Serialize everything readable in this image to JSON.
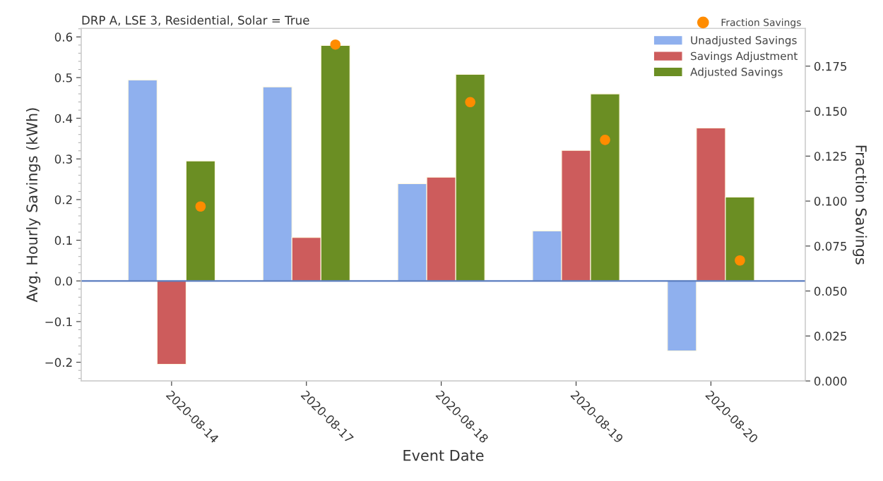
{
  "chart_data": {
    "type": "bar",
    "title": "DRP A, LSE 3, Residential, Solar = True",
    "xlabel": "Event Date",
    "ylabel": "Avg. Hourly Savings (kWh)",
    "y2label": "Fraction Savings",
    "categories": [
      "2020-08-14",
      "2020-08-17",
      "2020-08-18",
      "2020-08-19",
      "2020-08-20"
    ],
    "series": [
      {
        "name": "Unadjusted Savings",
        "color": "#8fb0ee",
        "values": [
          0.494,
          0.477,
          0.239,
          0.123,
          -0.172
        ]
      },
      {
        "name": "Savings Adjustment",
        "color": "#cd5c5c",
        "values": [
          -0.205,
          0.107,
          0.255,
          0.321,
          0.376
        ]
      },
      {
        "name": "Adjusted Savings",
        "color": "#6b8e23",
        "values": [
          0.295,
          0.579,
          0.508,
          0.46,
          0.206
        ]
      },
      {
        "name": "Fraction Savings",
        "type": "scatter",
        "axis": "y2",
        "color": "#ff8c00",
        "values": [
          0.097,
          0.187,
          0.155,
          0.134,
          0.067
        ]
      }
    ],
    "ylim": [
      -0.246,
      0.621
    ],
    "yticks": [
      {
        "value": -0.2,
        "label": "−0.2"
      },
      {
        "value": -0.1,
        "label": "−0.1"
      },
      {
        "value": 0.0,
        "label": "0.0"
      },
      0.1,
      0.2,
      0.3,
      0.4,
      0.5,
      0.6
    ],
    "y2lim": [
      0.0,
      0.196
    ],
    "y2ticks": [
      {
        "value": 0.0,
        "label": "0.000"
      },
      0.025,
      {
        "value": 0.05,
        "label": "0.050"
      },
      0.075,
      {
        "value": 0.1,
        "label": "0.100"
      },
      0.125,
      {
        "value": 0.15,
        "label": "0.150"
      },
      0.175
    ],
    "ref_lines": [
      {
        "axis": "y",
        "value": 0,
        "color": "#5a7dbf"
      }
    ],
    "legend": "top right",
    "grid": false,
    "marker": "circle"
  }
}
